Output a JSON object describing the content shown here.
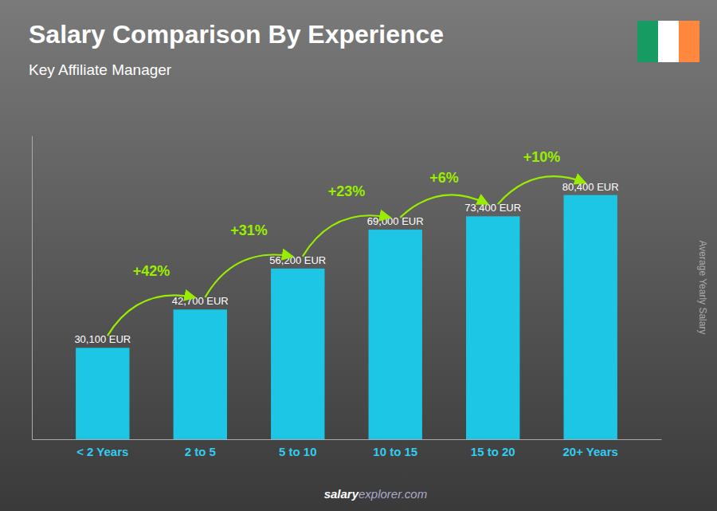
{
  "chart_data": {
    "type": "bar",
    "title": "Salary Comparison By Experience",
    "subtitle": "Key Affiliate Manager",
    "ylabel": "Average Yearly Salary",
    "categories": [
      "< 2 Years",
      "2 to 5",
      "5 to 10",
      "10 to 15",
      "15 to 20",
      "20+ Years"
    ],
    "values": [
      30100,
      42700,
      56200,
      69000,
      73400,
      80400
    ],
    "value_labels": [
      "30,100 EUR",
      "42,700 EUR",
      "56,200 EUR",
      "69,000 EUR",
      "73,400 EUR",
      "80,400 EUR"
    ],
    "data_labels": true,
    "color": "#1EC6E6",
    "ylim": [
      0,
      100000
    ],
    "tick_labels": "x",
    "grid": false,
    "annotations": [
      {
        "from": "< 2 Years",
        "to": "2 to 5",
        "text": "+42%"
      },
      {
        "from": "2 to 5",
        "to": "5 to 10",
        "text": "+31%"
      },
      {
        "from": "5 to 10",
        "to": "10 to 15",
        "text": "+23%"
      },
      {
        "from": "10 to 15",
        "to": "15 to 20",
        "text": "+6%"
      },
      {
        "from": "15 to 20",
        "to": "20+ Years",
        "text": "+10%"
      }
    ],
    "footer": [
      "salary",
      "explorer.com"
    ]
  }
}
